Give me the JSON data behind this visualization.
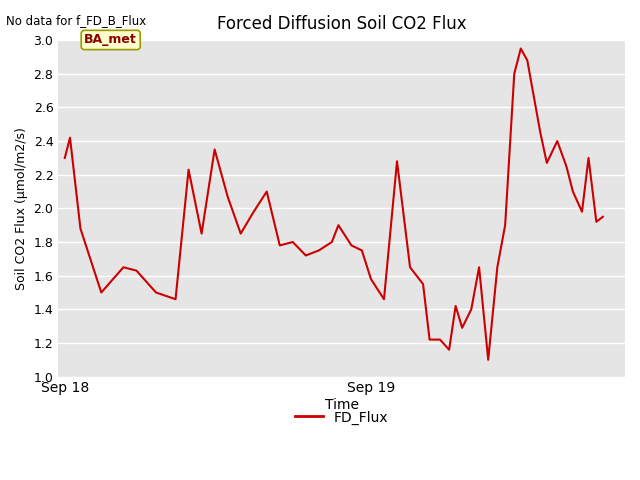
{
  "title": "Forced Diffusion Soil CO2 Flux",
  "subtitle": "No data for f_FD_B_Flux",
  "ylabel": "Soil CO2 Flux (μmol/m2/s)",
  "xlabel": "Time",
  "ylim": [
    1.0,
    3.0
  ],
  "yticks": [
    1.0,
    1.2,
    1.4,
    1.6,
    1.8,
    2.0,
    2.2,
    2.4,
    2.6,
    2.8,
    3.0
  ],
  "legend_label": "FD_Flux",
  "line_color": "#cc0000",
  "line_width": 1.5,
  "background_color": "#e5e5e5",
  "ba_met_label": "BA_met",
  "ba_met_facecolor": "#ffffcc",
  "ba_met_edgecolor": "#999900",
  "ba_met_textcolor": "#8b0000",
  "x": [
    0,
    0.4,
    1.2,
    2.8,
    4.5,
    5.5,
    7.0,
    8.5,
    9.5,
    10.5,
    11.5,
    12.5,
    13.5,
    14.5,
    15.5,
    16.5,
    17.5,
    18.5,
    19.5,
    20.5,
    21.0,
    22.0,
    22.8,
    23.5,
    24.5,
    25.5,
    26.5,
    27.5,
    28.0,
    28.8,
    29.5,
    30.0,
    30.5,
    31.2,
    31.8,
    32.5,
    33.2,
    33.8,
    34.5,
    35.0,
    35.5,
    36.5
  ],
  "y": [
    2.3,
    2.42,
    1.88,
    1.5,
    1.65,
    1.63,
    1.5,
    1.46,
    2.23,
    1.85,
    2.35,
    2.07,
    1.85,
    1.98,
    2.1,
    1.78,
    1.8,
    1.72,
    1.75,
    1.8,
    1.9,
    1.78,
    1.75,
    1.58,
    1.46,
    2.28,
    1.65,
    1.55,
    1.22,
    1.22,
    1.16,
    1.42,
    1.29,
    1.4,
    1.65,
    1.1,
    1.65,
    1.9,
    2.8,
    2.95,
    2.88,
    2.45
  ],
  "x_extra": [
    37.0,
    37.8,
    38.5,
    39.0,
    39.7,
    40.2,
    40.8,
    41.3
  ],
  "y_extra": [
    2.27,
    2.4,
    2.25,
    2.1,
    1.98,
    2.3,
    1.92,
    1.95
  ],
  "sep18_x": 0,
  "sep19_x": 23.5,
  "xlim": [
    -0.5,
    43
  ],
  "xtick_positions": [
    0,
    23.5,
    41
  ],
  "xtick_labels": [
    "Sep 18",
    "Sep 19",
    ""
  ]
}
